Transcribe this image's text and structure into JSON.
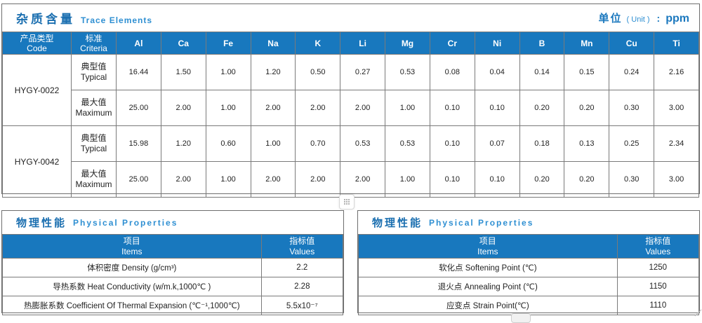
{
  "trace_section": {
    "title_cn": "杂质含量",
    "title_en": "Trace Elements",
    "unit_label_cn": "单位",
    "unit_label_en": "( Unit )",
    "unit_colon": ":",
    "unit_value": "ppm",
    "col1_header_cn": "产品类型",
    "col1_header_en": "Code",
    "col2_header_cn": "标准",
    "col2_header_en": "Criteria",
    "elements": [
      "Al",
      "Ca",
      "Fe",
      "Na",
      "K",
      "Li",
      "Mg",
      "Cr",
      "Ni",
      "B",
      "Mn",
      "Cu",
      "Ti"
    ],
    "products": [
      {
        "code": "HYGY-0022",
        "rows": [
          {
            "label_cn": "典型值",
            "label_en": "Typical",
            "values": [
              "16.44",
              "1.50",
              "1.00",
              "1.20",
              "0.50",
              "0.27",
              "0.53",
              "0.08",
              "0.04",
              "0.14",
              "0.15",
              "0.24",
              "2.16"
            ]
          },
          {
            "label_cn": "最大值",
            "label_en": "Maximum",
            "values": [
              "25.00",
              "2.00",
              "1.00",
              "2.00",
              "2.00",
              "2.00",
              "1.00",
              "0.10",
              "0.10",
              "0.20",
              "0.20",
              "0.30",
              "3.00"
            ]
          }
        ]
      },
      {
        "code": "HYGY-0042",
        "rows": [
          {
            "label_cn": "典型值",
            "label_en": "Typical",
            "values": [
              "15.98",
              "1.20",
              "0.60",
              "1.00",
              "0.70",
              "0.53",
              "0.53",
              "0.10",
              "0.07",
              "0.18",
              "0.13",
              "0.25",
              "2.34"
            ]
          },
          {
            "label_cn": "最大值",
            "label_en": "Maximum",
            "values": [
              "25.00",
              "2.00",
              "1.00",
              "2.00",
              "2.00",
              "2.00",
              "1.00",
              "0.10",
              "0.10",
              "0.20",
              "0.20",
              "0.30",
              "3.00"
            ]
          }
        ]
      }
    ]
  },
  "physical_sections": [
    {
      "title_cn": "物理性能",
      "title_en": "Physical Properties",
      "items_header_cn": "项目",
      "items_header_en": "Items",
      "values_header_cn": "指标值",
      "values_header_en": "Values",
      "rows": [
        {
          "item": "体积密度 Density (g/cm³)",
          "value": "2.2"
        },
        {
          "item": "导热系数 Heat Conductivity (w/m.k,1000℃ )",
          "value": "2.28"
        },
        {
          "item": "热膨胀系数 Coefficient Of Thermal Expansion (℃⁻¹,1000℃)",
          "value": "5.5x10⁻⁷"
        }
      ]
    },
    {
      "title_cn": "物理性能",
      "title_en": "Physical Properties",
      "items_header_cn": "项目",
      "items_header_en": "Items",
      "values_header_cn": "指标值",
      "values_header_en": "Values",
      "rows": [
        {
          "item": "软化点 Softening Point (℃)",
          "value": "1250"
        },
        {
          "item": "退火点 Annealing Point (℃)",
          "value": "1150"
        },
        {
          "item": "应变点 Strain Point(℃)",
          "value": "1110"
        }
      ]
    }
  ],
  "widgets": {
    "mid_handle_icon": "grid-dots",
    "bottom_handle_icon": "drag-bar",
    "corner_mark_icon": "resize-diagonal"
  },
  "colors": {
    "header_blue": "#1878be",
    "title_blue": "#1b6fb0",
    "subtitle_blue": "#2e8fd2",
    "border_gray": "#7a7a7a"
  }
}
